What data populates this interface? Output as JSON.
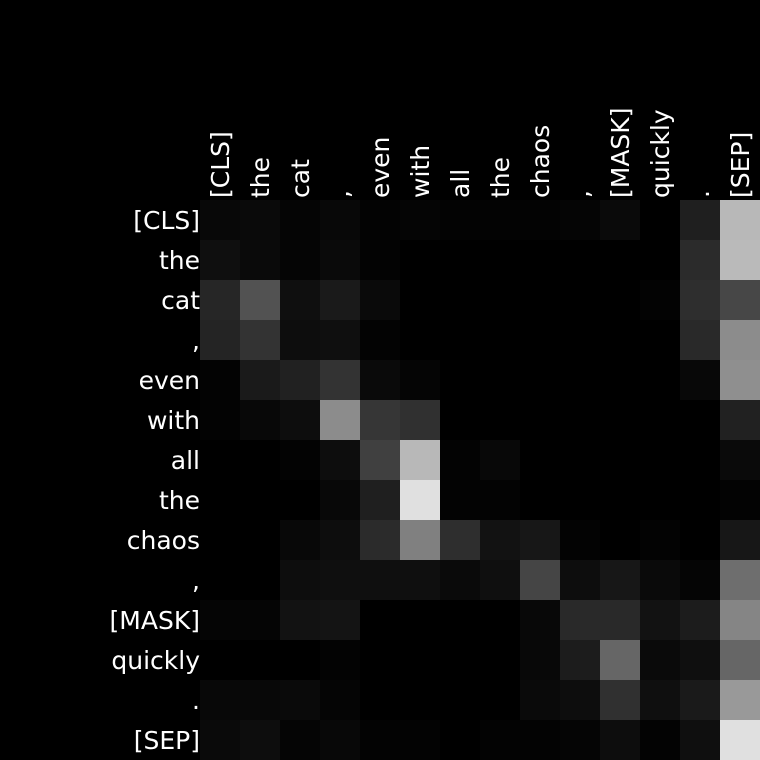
{
  "chart_data": {
    "type": "heatmap",
    "x_tokens": [
      "[CLS]",
      "the",
      "cat",
      ",",
      "even",
      "with",
      "all",
      "the",
      "chaos",
      ",",
      "[MASK]",
      "quickly",
      ".",
      "[SEP]"
    ],
    "y_tokens": [
      "[CLS]",
      "the",
      "cat",
      ",",
      "even",
      "with",
      "all",
      "the",
      "chaos",
      ",",
      "[MASK]",
      "quickly",
      ".",
      "[SEP]"
    ],
    "value_range": [
      0,
      1
    ],
    "colormap": "grayscale-black-to-white",
    "grid": false,
    "values": [
      [
        0.03,
        0.04,
        0.02,
        0.03,
        0.01,
        0.02,
        0.01,
        0.01,
        0.01,
        0.02,
        0.04,
        0.0,
        0.12,
        0.72
      ],
      [
        0.06,
        0.04,
        0.02,
        0.04,
        0.01,
        0.0,
        0.0,
        0.0,
        0.0,
        0.0,
        0.0,
        0.0,
        0.17,
        0.73
      ],
      [
        0.15,
        0.32,
        0.06,
        0.1,
        0.04,
        0.0,
        0.0,
        0.0,
        0.0,
        0.0,
        0.0,
        0.01,
        0.18,
        0.28
      ],
      [
        0.14,
        0.2,
        0.05,
        0.06,
        0.01,
        0.0,
        0.0,
        0.0,
        0.0,
        0.0,
        0.0,
        0.0,
        0.16,
        0.55
      ],
      [
        0.01,
        0.1,
        0.13,
        0.2,
        0.04,
        0.02,
        0.0,
        0.0,
        0.0,
        0.0,
        0.0,
        0.0,
        0.03,
        0.56
      ],
      [
        0.01,
        0.03,
        0.05,
        0.55,
        0.21,
        0.19,
        0.0,
        0.0,
        0.0,
        0.0,
        0.0,
        0.0,
        0.0,
        0.13
      ],
      [
        0.0,
        0.0,
        0.01,
        0.05,
        0.25,
        0.72,
        0.01,
        0.03,
        0.0,
        0.0,
        0.0,
        0.0,
        0.0,
        0.04
      ],
      [
        0.0,
        0.0,
        0.0,
        0.03,
        0.12,
        0.88,
        0.01,
        0.01,
        0.0,
        0.0,
        0.0,
        0.0,
        0.0,
        0.01
      ],
      [
        0.0,
        0.0,
        0.03,
        0.05,
        0.17,
        0.5,
        0.18,
        0.07,
        0.09,
        0.01,
        0.0,
        0.01,
        0.0,
        0.09
      ],
      [
        0.0,
        0.0,
        0.05,
        0.06,
        0.06,
        0.06,
        0.04,
        0.06,
        0.27,
        0.05,
        0.09,
        0.04,
        0.02,
        0.43
      ],
      [
        0.02,
        0.02,
        0.07,
        0.08,
        0.0,
        0.0,
        0.0,
        0.0,
        0.03,
        0.16,
        0.16,
        0.07,
        0.11,
        0.52
      ],
      [
        0.0,
        0.0,
        0.0,
        0.01,
        0.0,
        0.0,
        0.0,
        0.0,
        0.03,
        0.11,
        0.4,
        0.04,
        0.06,
        0.4
      ],
      [
        0.03,
        0.03,
        0.04,
        0.02,
        0.0,
        0.0,
        0.0,
        0.0,
        0.04,
        0.05,
        0.19,
        0.06,
        0.1,
        0.6
      ],
      [
        0.04,
        0.05,
        0.02,
        0.03,
        0.01,
        0.01,
        0.0,
        0.01,
        0.01,
        0.02,
        0.05,
        0.01,
        0.06,
        0.88
      ]
    ]
  }
}
